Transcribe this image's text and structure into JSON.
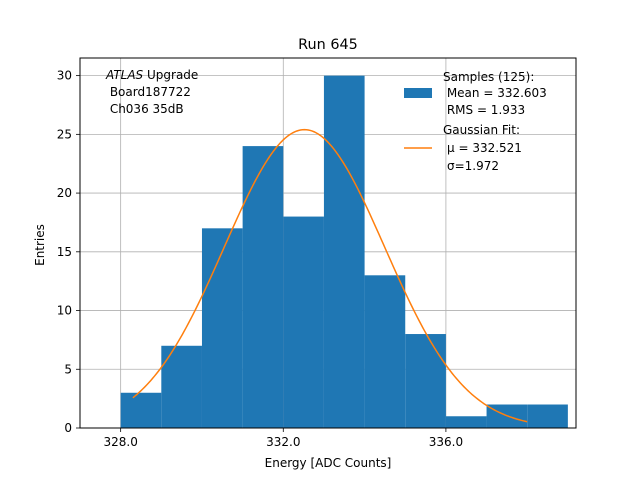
{
  "chart_data": {
    "type": "bar",
    "title": "Run 645",
    "xlabel": "Energy [ADC Counts]",
    "ylabel": "Entries",
    "xlim": [
      327.0,
      339.2
    ],
    "ylim": [
      0,
      31.5
    ],
    "xticks": [
      328.0,
      332.0,
      336.0
    ],
    "xtick_labels": [
      "328.0",
      "332.0",
      "336.0"
    ],
    "yticks": [
      0,
      5,
      10,
      15,
      20,
      25,
      30
    ],
    "ytick_labels": [
      "0",
      "5",
      "10",
      "15",
      "20",
      "25",
      "30"
    ],
    "grid": true,
    "histogram": {
      "bin_edges": [
        328,
        329,
        330,
        331,
        332,
        333,
        334,
        335,
        336,
        337,
        338,
        339
      ],
      "counts": [
        3,
        7,
        17,
        24,
        18,
        30,
        13,
        8,
        1,
        2,
        2
      ],
      "color": "#1f77b4"
    },
    "fit": {
      "type": "gaussian",
      "mu": 332.521,
      "sigma": 1.972,
      "peak": 25.4,
      "x_range": [
        328.3,
        338.0
      ],
      "color": "#ff7f0e"
    },
    "annotation": {
      "italic": "ATLAS",
      "text": " Upgrade",
      "lines": [
        " Board187722",
        " Ch036 35dB"
      ]
    },
    "legend": {
      "position": "top-right",
      "samples_lines": [
        "Samples (125):",
        " Mean = 332.603",
        " RMS = 1.933"
      ],
      "fit_lines": [
        "Gaussian Fit:",
        "μ = 332.521",
        "σ=1.972"
      ]
    }
  }
}
